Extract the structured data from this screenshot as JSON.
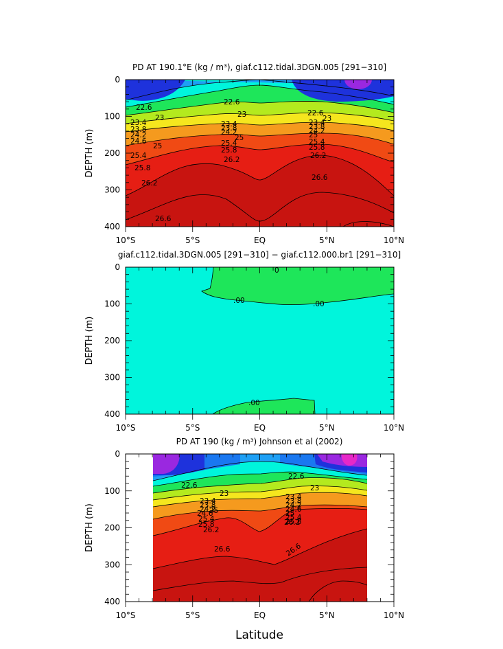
{
  "chart_data": [
    {
      "type": "contour",
      "title": "PD AT 190.1°E (kg / m³), giaf.c112.tidal.3DGN.005 [291−310]",
      "ylabel": "DEPTH (m)",
      "xlabel": "",
      "x_tick_labels": [
        "10°S",
        "5°S",
        "EQ",
        "5°N",
        "10°N"
      ],
      "x_ticks_deg": [
        -10,
        -5,
        0,
        5,
        10
      ],
      "y_tick_labels": [
        "0",
        "100",
        "200",
        "300",
        "400"
      ],
      "y_ticks": [
        0,
        100,
        200,
        300,
        400
      ],
      "xlim": [
        -10,
        10
      ],
      "ylim": [
        0,
        400
      ],
      "contour_labels": [
        "22.6",
        "23",
        "23.4",
        "23.8",
        "24.2",
        "24.6",
        "25",
        "25.4",
        "25.8",
        "26.2",
        "26.6",
        "22.6",
        "23",
        "23.4",
        "23.8",
        "24.2",
        "25",
        "25.4",
        "25.8",
        "26.2",
        "22.6",
        "23",
        "23.4",
        "23.8",
        "24.2",
        "25",
        "25.4",
        "25.8",
        "26.2",
        "26.6"
      ],
      "levels": [
        22.6,
        23,
        23.4,
        23.8,
        24.2,
        24.6,
        25,
        25.4,
        25.8,
        26.2,
        26.6
      ]
    },
    {
      "type": "contour",
      "title": "giaf.c112.tidal.3DGN.005 [291−310] − giaf.c112.000.br1 [291−310]",
      "ylabel": "DEPTH (m)",
      "xlabel": "",
      "x_tick_labels": [
        "10°S",
        "5°S",
        "EQ",
        "5°N",
        "10°N"
      ],
      "x_ticks_deg": [
        -10,
        -5,
        0,
        5,
        10
      ],
      "y_tick_labels": [
        "0",
        "100",
        "200",
        "300",
        "400"
      ],
      "y_ticks": [
        0,
        100,
        200,
        300,
        400
      ],
      "xlim": [
        -10,
        10
      ],
      "ylim": [
        0,
        400
      ],
      "contour_labels": [
        ".00",
        ".00",
        ".00",
        "0"
      ],
      "levels": [
        0
      ]
    },
    {
      "type": "contour",
      "title": "PD AT 190 (kg / m³) Johnson et al (2002)",
      "ylabel": "DEPTH (m)",
      "xlabel": "Latitude",
      "x_tick_labels": [
        "10°S",
        "5°S",
        "EQ",
        "5°N",
        "10°N"
      ],
      "x_ticks_deg": [
        -10,
        -5,
        0,
        5,
        10
      ],
      "y_tick_labels": [
        "0",
        "100",
        "200",
        "300",
        "400"
      ],
      "y_ticks": [
        0,
        100,
        200,
        300,
        400
      ],
      "xlim": [
        -10,
        10
      ],
      "ylim": [
        0,
        400
      ],
      "data_xlim": [
        -8,
        8
      ],
      "contour_labels": [
        "22.6",
        "23",
        "23.4",
        "23.8",
        "24.2",
        "24.6",
        "25",
        "25.4",
        "25.8",
        "26.2",
        "22.6",
        "23",
        "23.4",
        "23.8",
        "24.2",
        "24.6",
        "25",
        "25.4",
        "25.8",
        "26.2",
        "26.6",
        "26.6"
      ],
      "levels": [
        22.6,
        23,
        23.4,
        23.8,
        24.2,
        24.6,
        25,
        25.4,
        25.8,
        26.2,
        26.6
      ]
    }
  ],
  "colors": {
    "purple": "#9a28e0",
    "dark_blue": "#1e32dc",
    "blue": "#1a78f0",
    "light_blue": "#1ea0f5",
    "cyan": "#00f5dc",
    "green": "#1ee65a",
    "yellow_green": "#b4ea1e",
    "yellow": "#f5e61e",
    "orange": "#f59a1e",
    "red_orange": "#f04a14",
    "red": "#e61e14",
    "dark_red": "#c81410"
  }
}
